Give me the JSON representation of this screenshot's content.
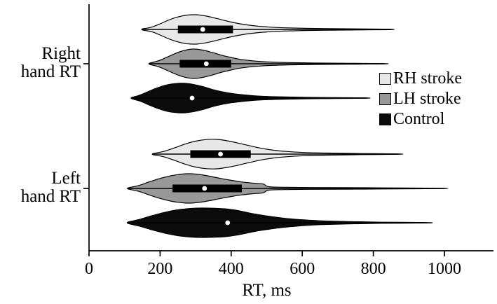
{
  "chart_data": {
    "type": "violin",
    "title": "",
    "xlabel": "RT, ms",
    "xlim": [
      0,
      1000
    ],
    "xticks": [
      0,
      200,
      400,
      600,
      800,
      1000
    ],
    "legend_position": "right",
    "legend": [
      {
        "label": "RH stroke",
        "color": "#e8e8e8"
      },
      {
        "label": "LH stroke",
        "color": "#999999"
      },
      {
        "label": "Control",
        "color": "#0b0b0b"
      }
    ],
    "groups": [
      {
        "label": "Right hand RT",
        "violins": [
          {
            "series": "RH stroke",
            "color": "#e8e8e8",
            "min": 150,
            "max": 850,
            "q1": 250,
            "q3": 405,
            "median": 320,
            "show_box": true,
            "density": [
              [
                150,
                0.04
              ],
              [
                175,
                0.15
              ],
              [
                200,
                0.38
              ],
              [
                225,
                0.65
              ],
              [
                250,
                0.85
              ],
              [
                275,
                0.97
              ],
              [
                300,
                1.0
              ],
              [
                325,
                0.93
              ],
              [
                350,
                0.8
              ],
              [
                375,
                0.65
              ],
              [
                400,
                0.5
              ],
              [
                430,
                0.36
              ],
              [
                460,
                0.26
              ],
              [
                500,
                0.17
              ],
              [
                550,
                0.11
              ],
              [
                620,
                0.07
              ],
              [
                700,
                0.05
              ],
              [
                780,
                0.03
              ],
              [
                850,
                0.015
              ]
            ]
          },
          {
            "series": "LH stroke",
            "color": "#999999",
            "min": 170,
            "max": 830,
            "q1": 255,
            "q3": 400,
            "median": 330,
            "show_box": true,
            "density": [
              [
                170,
                0.04
              ],
              [
                195,
                0.2
              ],
              [
                220,
                0.45
              ],
              [
                245,
                0.72
              ],
              [
                270,
                0.92
              ],
              [
                295,
                1.0
              ],
              [
                320,
                0.93
              ],
              [
                345,
                0.78
              ],
              [
                370,
                0.6
              ],
              [
                395,
                0.45
              ],
              [
                425,
                0.3
              ],
              [
                460,
                0.2
              ],
              [
                500,
                0.13
              ],
              [
                560,
                0.08
              ],
              [
                640,
                0.05
              ],
              [
                730,
                0.035
              ],
              [
                830,
                0.015
              ]
            ]
          },
          {
            "series": "Control",
            "color": "#0b0b0b",
            "min": 120,
            "max": 780,
            "q1": null,
            "q3": null,
            "median": 290,
            "show_box": false,
            "density": [
              [
                120,
                0.04
              ],
              [
                145,
                0.22
              ],
              [
                170,
                0.48
              ],
              [
                195,
                0.72
              ],
              [
                220,
                0.9
              ],
              [
                245,
                0.99
              ],
              [
                270,
                1.0
              ],
              [
                295,
                0.92
              ],
              [
                320,
                0.78
              ],
              [
                345,
                0.6
              ],
              [
                370,
                0.45
              ],
              [
                400,
                0.32
              ],
              [
                435,
                0.22
              ],
              [
                475,
                0.14
              ],
              [
                525,
                0.09
              ],
              [
                600,
                0.05
              ],
              [
                690,
                0.03
              ],
              [
                780,
                0.015
              ]
            ]
          }
        ]
      },
      {
        "label": "Left hand RT",
        "violins": [
          {
            "series": "RH stroke",
            "color": "#e8e8e8",
            "min": 180,
            "max": 870,
            "q1": 285,
            "q3": 455,
            "median": 370,
            "show_box": true,
            "density": [
              [
                180,
                0.04
              ],
              [
                210,
                0.18
              ],
              [
                240,
                0.42
              ],
              [
                270,
                0.68
              ],
              [
                300,
                0.88
              ],
              [
                330,
                0.99
              ],
              [
                360,
                1.0
              ],
              [
                390,
                0.9
              ],
              [
                420,
                0.75
              ],
              [
                450,
                0.58
              ],
              [
                480,
                0.42
              ],
              [
                515,
                0.28
              ],
              [
                555,
                0.18
              ],
              [
                605,
                0.11
              ],
              [
                670,
                0.07
              ],
              [
                760,
                0.04
              ],
              [
                870,
                0.015
              ]
            ]
          },
          {
            "series": "LH stroke",
            "color": "#999999",
            "min": 110,
            "max": 1000,
            "q1": 235,
            "q3": 430,
            "median": 325,
            "show_box": true,
            "density": [
              [
                110,
                0.04
              ],
              [
                140,
                0.2
              ],
              [
                170,
                0.45
              ],
              [
                200,
                0.68
              ],
              [
                230,
                0.86
              ],
              [
                260,
                0.97
              ],
              [
                285,
                1.0
              ],
              [
                310,
                0.95
              ],
              [
                340,
                0.83
              ],
              [
                370,
                0.68
              ],
              [
                400,
                0.55
              ],
              [
                430,
                0.44
              ],
              [
                460,
                0.36
              ],
              [
                490,
                0.3
              ],
              [
                505,
                0.12
              ],
              [
                550,
                0.08
              ],
              [
                620,
                0.06
              ],
              [
                720,
                0.05
              ],
              [
                830,
                0.04
              ],
              [
                920,
                0.025
              ],
              [
                1000,
                0.01
              ]
            ]
          },
          {
            "series": "Control",
            "color": "#0b0b0b",
            "min": 110,
            "max": 950,
            "q1": null,
            "q3": null,
            "median": 390,
            "show_box": false,
            "density": [
              [
                110,
                0.05
              ],
              [
                145,
                0.25
              ],
              [
                180,
                0.5
              ],
              [
                215,
                0.72
              ],
              [
                250,
                0.88
              ],
              [
                285,
                0.97
              ],
              [
                320,
                1.0
              ],
              [
                355,
                0.98
              ],
              [
                390,
                0.93
              ],
              [
                425,
                0.8
              ],
              [
                460,
                0.62
              ],
              [
                500,
                0.46
              ],
              [
                545,
                0.32
              ],
              [
                595,
                0.21
              ],
              [
                655,
                0.13
              ],
              [
                730,
                0.08
              ],
              [
                820,
                0.04
              ],
              [
                950,
                0.015
              ]
            ]
          }
        ]
      }
    ]
  }
}
